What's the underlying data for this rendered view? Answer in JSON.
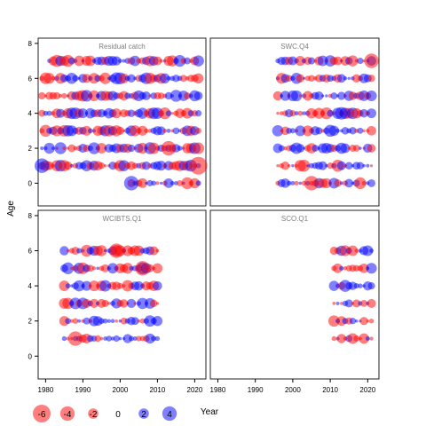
{
  "chart_data": {
    "type": "scatter",
    "subtype": "bubble",
    "xlabel": "Year",
    "ylabel": "Age",
    "xlim": [
      1978,
      2023
    ],
    "ylim": [
      -1.3,
      8.3
    ],
    "xticks": [
      1980,
      1990,
      2000,
      2010,
      2020
    ],
    "yticks": [
      0,
      2,
      4,
      6,
      8
    ],
    "positive_color": "#0000ff",
    "negative_color": "#ff0000",
    "panels": [
      {
        "name": "Residual catch",
        "years": [
          1979,
          2021
        ],
        "ages": [
          0,
          1,
          2,
          3,
          4,
          5,
          6,
          7
        ],
        "age0_from": 2003,
        "age7_from": 1981,
        "seed": 11
      },
      {
        "name": "SWC.Q4",
        "years": [
          1996,
          2021
        ],
        "ages": [
          0,
          1,
          2,
          3,
          4,
          5,
          6,
          7
        ],
        "seed": 23
      },
      {
        "name": "WCIBTS.Q1",
        "years": [
          1985,
          2010
        ],
        "ages": [
          1,
          2,
          3,
          4,
          5,
          6
        ],
        "seed": 37
      },
      {
        "name": "SCO.Q1",
        "years": [
          2011,
          2021
        ],
        "ages": [
          1,
          2,
          3,
          4,
          5,
          6
        ],
        "seed": 53
      }
    ],
    "highlights": [
      {
        "panel": "Residual catch",
        "year": 2021,
        "age": 1,
        "value": -6
      },
      {
        "panel": "Residual catch",
        "year": 2003,
        "age": 0,
        "value": 4
      },
      {
        "panel": "Residual catch",
        "year": 1979,
        "age": 1,
        "value": 4
      },
      {
        "panel": "Residual catch",
        "year": 2013,
        "age": 2,
        "value": -4
      },
      {
        "panel": "WCIBTS.Q1",
        "year": 2006,
        "age": 5,
        "value": -4
      },
      {
        "panel": "WCIBTS.Q1",
        "year": 1988,
        "age": 1,
        "value": -4
      },
      {
        "panel": "WCIBTS.Q1",
        "year": 1999,
        "age": 6,
        "value": -4
      },
      {
        "panel": "SWC.Q4",
        "year": 2021,
        "age": 7,
        "value": -4
      },
      {
        "panel": "SWC.Q4",
        "year": 2005,
        "age": 0,
        "value": -4
      },
      {
        "panel": "SWC.Q4",
        "year": 2013,
        "age": 4,
        "value": 3
      }
    ],
    "legend": {
      "values": [
        -6,
        -4,
        -2,
        0,
        2,
        4
      ],
      "position": "bottom-left"
    }
  }
}
